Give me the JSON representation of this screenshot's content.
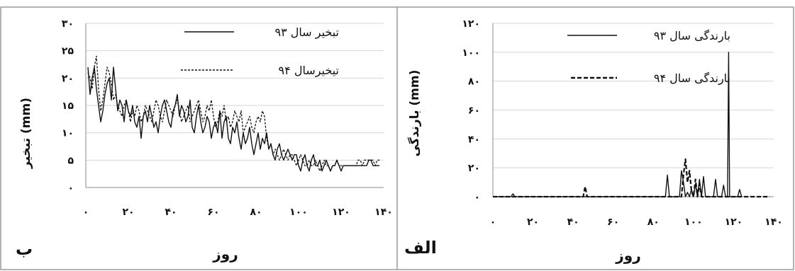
{
  "chart_data": [
    {
      "panel_label": "ب",
      "type": "line",
      "xlabel": "روز",
      "ylabel": "تبخیر (mm)",
      "xlim": [
        0,
        140
      ],
      "ylim": [
        0,
        30
      ],
      "x_ticks": [
        "۰",
        "۲۰",
        "۴۰",
        "۶۰",
        "۸۰",
        "۱۰۰",
        "۱۲۰",
        "۱۴۰"
      ],
      "y_ticks": [
        "۰",
        "۵",
        "۱۰",
        "۱۵",
        "۲۰",
        "۲۵",
        "۳۰"
      ],
      "legend_position": "top-right",
      "grid": "horizontal",
      "series": [
        {
          "name": "تبخیر سال ۹۳",
          "style": "solid",
          "x": [
            1,
            2,
            3,
            4,
            5,
            6,
            7,
            8,
            9,
            10,
            11,
            12,
            13,
            14,
            15,
            16,
            17,
            18,
            19,
            20,
            21,
            22,
            23,
            24,
            25,
            26,
            27,
            28,
            29,
            30,
            31,
            32,
            33,
            34,
            35,
            36,
            37,
            38,
            39,
            40,
            41,
            42,
            43,
            44,
            45,
            46,
            47,
            48,
            49,
            50,
            51,
            52,
            53,
            54,
            55,
            56,
            57,
            58,
            59,
            60,
            61,
            62,
            63,
            64,
            65,
            66,
            67,
            68,
            69,
            70,
            71,
            72,
            73,
            74,
            75,
            76,
            77,
            78,
            79,
            80,
            81,
            82,
            83,
            84,
            85,
            86,
            87,
            88,
            89,
            90,
            91,
            92,
            93,
            94,
            95,
            96,
            97,
            98,
            99,
            100,
            101,
            102,
            103,
            104,
            105,
            106,
            107,
            108,
            109,
            110,
            111,
            112,
            113,
            114,
            115,
            116,
            117,
            118,
            119,
            120,
            121,
            122,
            123,
            124,
            125,
            126,
            127,
            128,
            129,
            130,
            131,
            132,
            133,
            134,
            135,
            136,
            137,
            138
          ],
          "y": [
            22,
            17,
            20,
            22,
            18,
            15,
            12,
            14,
            17,
            19,
            20,
            16,
            22,
            18,
            14,
            16,
            15,
            12,
            16,
            14,
            13,
            15,
            12,
            11,
            13,
            9,
            13,
            14,
            12,
            15,
            13,
            11,
            12,
            10,
            13,
            15,
            16,
            14,
            12,
            11,
            14,
            15,
            17,
            13,
            15,
            14,
            12,
            13,
            16,
            11,
            10,
            13,
            15,
            12,
            10,
            11,
            13,
            12,
            9,
            11,
            12,
            10,
            14,
            9,
            12,
            13,
            9,
            8,
            11,
            10,
            12,
            9,
            7,
            10,
            8,
            9,
            11,
            8,
            6,
            8,
            10,
            7,
            9,
            8,
            10,
            7,
            8,
            6,
            5,
            7,
            8,
            6,
            5,
            6,
            7,
            6,
            5,
            6,
            6,
            4,
            3,
            5,
            6,
            4,
            3,
            5,
            6,
            4,
            4,
            5,
            3,
            4,
            5,
            4,
            3,
            4,
            4,
            5,
            4,
            3,
            4,
            4,
            4,
            4,
            4,
            4,
            4,
            4,
            4,
            4,
            4,
            4,
            5,
            5,
            4,
            4,
            4,
            4
          ]
        },
        {
          "name": "تیخیرسال ۹۴",
          "style": "dashed",
          "x": [
            1,
            2,
            3,
            4,
            5,
            6,
            7,
            8,
            9,
            10,
            11,
            12,
            13,
            14,
            15,
            16,
            17,
            18,
            19,
            20,
            21,
            22,
            23,
            24,
            25,
            26,
            27,
            28,
            29,
            30,
            31,
            32,
            33,
            34,
            35,
            36,
            37,
            38,
            39,
            40,
            41,
            42,
            43,
            44,
            45,
            46,
            47,
            48,
            49,
            50,
            51,
            52,
            53,
            54,
            55,
            56,
            57,
            58,
            59,
            60,
            61,
            62,
            63,
            64,
            65,
            66,
            67,
            68,
            69,
            70,
            71,
            72,
            73,
            74,
            75,
            76,
            77,
            78,
            79,
            80,
            81,
            82,
            83,
            84,
            85,
            86,
            87,
            88,
            89,
            90,
            91,
            92,
            93,
            94,
            95,
            96,
            97,
            98,
            99,
            100,
            101,
            102,
            103,
            104,
            105,
            106,
            107,
            108,
            109,
            110,
            111,
            112,
            113,
            114,
            115,
            116,
            117,
            118,
            119,
            120,
            121,
            122,
            123,
            124,
            125,
            126,
            127,
            128,
            129,
            130,
            131,
            132,
            133,
            134,
            135,
            136,
            137,
            138
          ],
          "y": [
            21,
            20,
            18,
            22,
            24,
            18,
            14,
            16,
            19,
            22,
            21,
            19,
            16,
            17,
            15,
            14,
            13,
            15,
            16,
            14,
            12,
            14,
            13,
            15,
            14,
            12,
            13,
            15,
            14,
            13,
            12,
            14,
            16,
            15,
            13,
            12,
            14,
            16,
            15,
            14,
            13,
            15,
            16,
            14,
            12,
            13,
            14,
            15,
            12,
            13,
            14,
            15,
            16,
            14,
            12,
            13,
            15,
            14,
            16,
            13,
            11,
            12,
            14,
            13,
            15,
            12,
            13,
            11,
            12,
            14,
            13,
            12,
            14,
            10,
            11,
            12,
            13,
            11,
            10,
            12,
            13,
            12,
            14,
            13,
            9,
            7,
            8,
            6,
            7,
            6,
            5,
            6,
            7,
            6,
            5,
            6,
            6,
            5,
            4,
            5,
            6,
            5,
            4,
            4,
            5,
            4,
            4,
            5,
            4,
            3,
            4,
            5,
            4,
            4,
            3,
            4,
            4,
            5,
            4,
            4,
            4,
            4,
            4,
            4,
            4,
            4,
            4,
            5,
            5,
            4,
            5,
            5,
            5,
            5,
            5,
            4,
            5,
            5
          ]
        }
      ]
    },
    {
      "panel_label": "الف",
      "type": "line",
      "xlabel": "روز",
      "ylabel": "بارندگی (mm)",
      "xlim": [
        0,
        140
      ],
      "ylim": [
        0,
        120
      ],
      "x_ticks": [
        "۰",
        "۲۰",
        "۴۰",
        "۶۰",
        "۸۰",
        "۱۰۰",
        "۱۲۰",
        "۱۴۰"
      ],
      "y_ticks": [
        "۰",
        "۲۰",
        "۴۰",
        "۶۰",
        "۸۰",
        "۱۰۰",
        "۱۲۰"
      ],
      "legend_position": "top-right",
      "grid": "horizontal",
      "series": [
        {
          "name": "بارندگی سال  ۹۳",
          "style": "solid",
          "x": [
            0,
            9,
            10,
            11,
            29,
            30,
            31,
            86,
            87,
            88,
            93,
            94,
            95,
            96,
            97,
            98,
            99,
            100,
            101,
            102,
            103,
            104,
            105,
            106,
            107,
            110,
            111,
            112,
            112.5,
            114,
            115,
            116,
            116.5,
            117,
            117.5,
            118,
            119,
            122,
            123,
            124
          ],
          "y": [
            0,
            0,
            2,
            0,
            0,
            0,
            0,
            0,
            15,
            0,
            0,
            18,
            10,
            0,
            3,
            0,
            5,
            0,
            9,
            0,
            12,
            0,
            14,
            0,
            0,
            0,
            12,
            0,
            0,
            0,
            8,
            0,
            0,
            0,
            100,
            0,
            0,
            0,
            5,
            0
          ]
        },
        {
          "name": "بارندگی سال ۹۴",
          "style": "dashed",
          "x": [
            0,
            45,
            46,
            47,
            87,
            88,
            89,
            90,
            91,
            92,
            93,
            94,
            95,
            96,
            97,
            98,
            99,
            100,
            101,
            102,
            103,
            104,
            105,
            106,
            107,
            108,
            109,
            110,
            111,
            112,
            113,
            114,
            115,
            116,
            117,
            118,
            119,
            120,
            121,
            122,
            123,
            124,
            125,
            126,
            127,
            128,
            129,
            130,
            131,
            132,
            133,
            134,
            135,
            136,
            137,
            138
          ],
          "y": [
            0,
            0,
            7,
            0,
            0,
            0,
            0,
            0,
            0,
            0,
            0,
            0,
            15,
            26,
            10,
            18,
            4,
            0,
            12,
            0,
            9,
            0,
            0,
            0,
            0,
            0,
            0,
            0,
            0,
            0,
            0,
            0,
            0,
            0,
            0,
            0,
            0,
            0,
            0,
            0,
            0,
            0,
            0,
            0,
            0,
            0,
            0,
            0,
            0,
            0,
            0,
            0,
            0,
            0,
            0,
            0
          ]
        }
      ]
    }
  ]
}
